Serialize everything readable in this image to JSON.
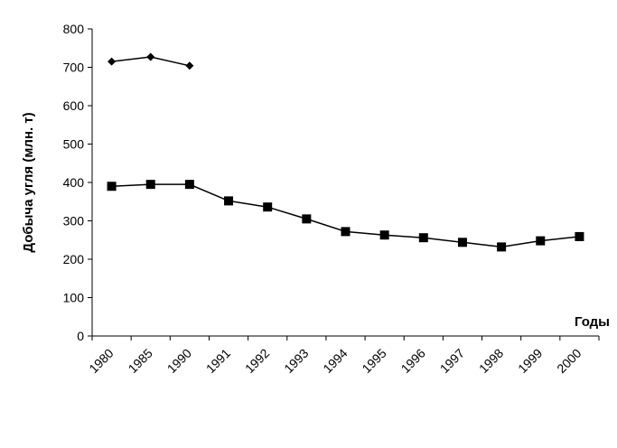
{
  "chart_data": {
    "type": "line",
    "title": "",
    "xlabel": "Годы",
    "ylabel": "Добыча угля (млн. т)",
    "categories": [
      "1980",
      "1985",
      "1990",
      "1991",
      "1992",
      "1993",
      "1994",
      "1995",
      "1996",
      "1997",
      "1998",
      "1999",
      "2000"
    ],
    "ylim": [
      0,
      800
    ],
    "yticks": [
      0,
      100,
      200,
      300,
      400,
      500,
      600,
      700,
      800
    ],
    "grid": false,
    "legend": "none",
    "series": [
      {
        "marker": "diamond",
        "color": "#000000",
        "values": [
          715,
          727,
          704,
          null,
          null,
          null,
          null,
          null,
          null,
          null,
          null,
          null,
          null
        ]
      },
      {
        "marker": "square",
        "color": "#000000",
        "values": [
          390,
          395,
          395,
          352,
          336,
          305,
          272,
          263,
          256,
          244,
          232,
          248,
          259
        ]
      }
    ]
  }
}
